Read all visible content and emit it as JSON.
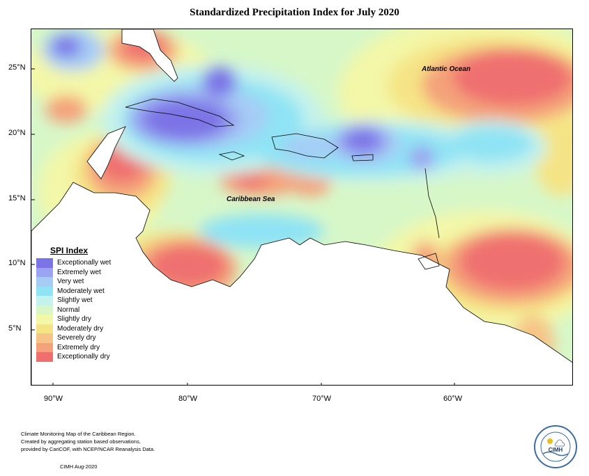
{
  "title": "Standardized Precipitation Index for July 2020",
  "lat_labels": [
    "25°N",
    "20°N",
    "15°N",
    "10°N",
    "5°N"
  ],
  "lon_labels": [
    "90°W",
    "80°W",
    "70°W",
    "60°W"
  ],
  "ocean_labels": {
    "atlantic": "Atlantic Ocean",
    "caribbean": "Caribbean Sea"
  },
  "legend": {
    "title": "SPI Index",
    "items": [
      {
        "label": "Exceptionally wet",
        "color": "#7b73e6"
      },
      {
        "label": "Extremely wet",
        "color": "#9aa4f0"
      },
      {
        "label": "Very wet",
        "color": "#a6ccf5"
      },
      {
        "label": "Moderately wet",
        "color": "#8fe3f4"
      },
      {
        "label": "Slightly wet",
        "color": "#c4f2ec"
      },
      {
        "label": "Normal",
        "color": "#d7f7c8"
      },
      {
        "label": "Slightly dry",
        "color": "#f3f7a8"
      },
      {
        "label": "Moderately dry",
        "color": "#f5e486"
      },
      {
        "label": "Severely dry",
        "color": "#f6c486"
      },
      {
        "label": "Extremely dry",
        "color": "#f4a27a"
      },
      {
        "label": "Exceptionally dry",
        "color": "#ef6f6f"
      }
    ]
  },
  "footer": {
    "lines": [
      "Climate Monitoring Map of the Caribbean Region.",
      "Created by aggregating station based observations,",
      "provided by CariCOF, with NCEP/NCAR Reanalysis Data."
    ],
    "credit": "CIMH Aug-2020"
  },
  "logo_text": "CIMH"
}
